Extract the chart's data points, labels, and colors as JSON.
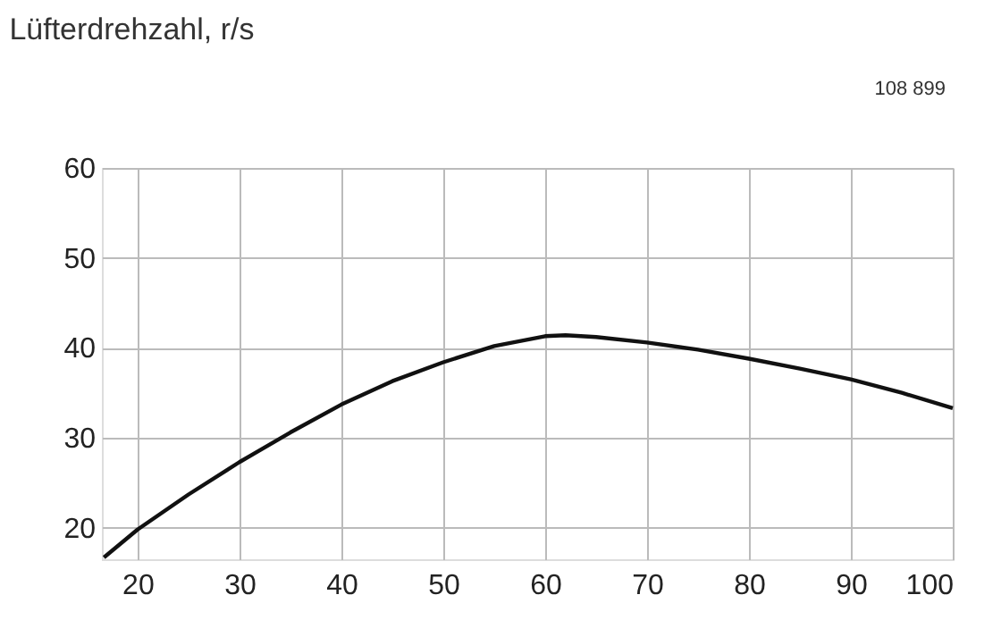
{
  "chart_data": {
    "type": "line",
    "title": "Lüfterdrehzahl, r/s",
    "annotations": [
      "108 899"
    ],
    "x": [
      16.7,
      20,
      25,
      30,
      35,
      40,
      45,
      50,
      55,
      60,
      62,
      65,
      70,
      75,
      80,
      85,
      90,
      95,
      100
    ],
    "series": [
      {
        "color": "#111111",
        "values": [
          16.7,
          19.8,
          23.7,
          27.3,
          30.6,
          33.7,
          36.3,
          38.4,
          40.2,
          41.3,
          41.4,
          41.2,
          40.6,
          39.8,
          38.8,
          37.7,
          36.5,
          35.0,
          33.3
        ]
      }
    ],
    "xlim": [
      16.5,
      100
    ],
    "ylim": [
      16.5,
      60
    ],
    "xticks": [
      20,
      30,
      40,
      50,
      60,
      70,
      80,
      90,
      100
    ],
    "yticks": [
      20,
      30,
      40,
      50,
      60
    ],
    "grid": true,
    "legend": false,
    "marker": "none",
    "line_style": "solid"
  }
}
